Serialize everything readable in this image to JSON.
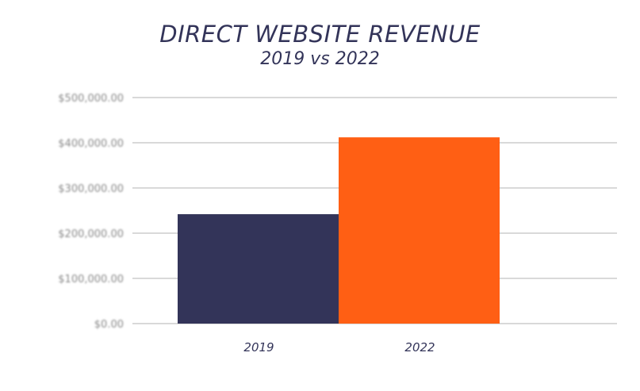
{
  "chart_data": {
    "type": "bar",
    "title": "DIRECT WEBSITE REVENUE",
    "subtitle": "2019 vs 2022",
    "categories": [
      "2019",
      "2022"
    ],
    "values": [
      242000,
      412000
    ],
    "colors": [
      "#333459",
      "#FF5F14"
    ],
    "ylim": [
      0,
      500000
    ],
    "yticks": [
      0,
      100000,
      200000,
      300000,
      400000,
      500000
    ],
    "ytick_labels": [
      "$0.00",
      "$100,000.00",
      "$200,000.00",
      "$300,000.00",
      "$400,000.00",
      "$500,000.00"
    ],
    "grid": true,
    "xlabel": "",
    "ylabel": ""
  }
}
